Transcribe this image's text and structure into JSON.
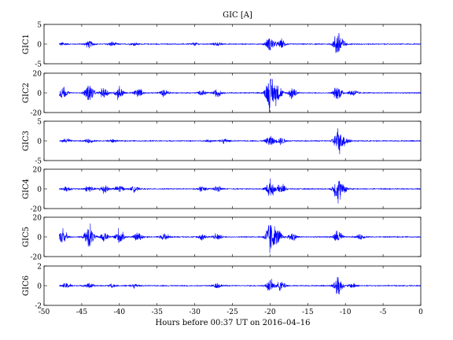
{
  "chart_data": {
    "type": "line",
    "title": "GIC [A]",
    "xlabel": "Hours before  00:37 UT on 2016–04–16",
    "xlim": [
      -50,
      0
    ],
    "xticks": [
      "-50",
      "-45",
      "-40",
      "-35",
      "-30",
      "-25",
      "-20",
      "-15",
      "-10",
      "-5",
      "0"
    ],
    "grid": false,
    "series_color": "#0000ff",
    "panels": [
      {
        "name": "GIC1",
        "ylim": [
          -5,
          5
        ],
        "yticks": [
          "-5",
          "0",
          "5"
        ],
        "events": [
          {
            "x": -47.5,
            "a": 0.5
          },
          {
            "x": -44,
            "a": 1.0
          },
          {
            "x": -41,
            "a": 0.6
          },
          {
            "x": -38,
            "a": 0.4
          },
          {
            "x": -30,
            "a": 0.4
          },
          {
            "x": -27,
            "a": 0.5
          },
          {
            "x": -20,
            "a": 2.0
          },
          {
            "x": -18.5,
            "a": 1.2
          },
          {
            "x": -11,
            "a": 3.5
          },
          {
            "x": -10.5,
            "a": 0.8
          }
        ]
      },
      {
        "name": "GIC2",
        "ylim": [
          -20,
          20
        ],
        "yticks": [
          "-20",
          "0",
          "20"
        ],
        "events": [
          {
            "x": -47.5,
            "a": 7
          },
          {
            "x": -44,
            "a": 11
          },
          {
            "x": -42,
            "a": 6
          },
          {
            "x": -40,
            "a": 7
          },
          {
            "x": -37.5,
            "a": 5
          },
          {
            "x": -34,
            "a": 4
          },
          {
            "x": -29,
            "a": 3
          },
          {
            "x": -27,
            "a": 4
          },
          {
            "x": -20,
            "a": 19
          },
          {
            "x": -19,
            "a": 10
          },
          {
            "x": -17,
            "a": 6
          },
          {
            "x": -11,
            "a": 8
          },
          {
            "x": -9,
            "a": 4
          }
        ]
      },
      {
        "name": "GIC3",
        "ylim": [
          -5,
          5
        ],
        "yticks": [
          "-5",
          "0",
          "5"
        ],
        "events": [
          {
            "x": -47,
            "a": 0.6
          },
          {
            "x": -44,
            "a": 0.6
          },
          {
            "x": -41,
            "a": 0.4
          },
          {
            "x": -28,
            "a": 0.3
          },
          {
            "x": -26,
            "a": 0.6
          },
          {
            "x": -20,
            "a": 1.6
          },
          {
            "x": -18.5,
            "a": 1.0
          },
          {
            "x": -11,
            "a": 3.2
          },
          {
            "x": -10,
            "a": 1.2
          }
        ]
      },
      {
        "name": "GIC4",
        "ylim": [
          -20,
          20
        ],
        "yticks": [
          "-20",
          "0",
          "20"
        ],
        "events": [
          {
            "x": -47,
            "a": 3
          },
          {
            "x": -44,
            "a": 4
          },
          {
            "x": -42,
            "a": 5
          },
          {
            "x": -40,
            "a": 4
          },
          {
            "x": -38,
            "a": 3
          },
          {
            "x": -29,
            "a": 3
          },
          {
            "x": -27,
            "a": 3
          },
          {
            "x": -20,
            "a": 9
          },
          {
            "x": -18.5,
            "a": 5
          },
          {
            "x": -11,
            "a": 14
          },
          {
            "x": -10,
            "a": 3
          }
        ]
      },
      {
        "name": "GIC5",
        "ylim": [
          -20,
          20
        ],
        "yticks": [
          "-20",
          "0",
          "20"
        ],
        "events": [
          {
            "x": -47.5,
            "a": 8
          },
          {
            "x": -44,
            "a": 13
          },
          {
            "x": -42,
            "a": 5
          },
          {
            "x": -40,
            "a": 8
          },
          {
            "x": -37.5,
            "a": 5
          },
          {
            "x": -34,
            "a": 4
          },
          {
            "x": -29,
            "a": 3
          },
          {
            "x": -27,
            "a": 4
          },
          {
            "x": -20,
            "a": 17
          },
          {
            "x": -19,
            "a": 9
          },
          {
            "x": -17,
            "a": 5
          },
          {
            "x": -11,
            "a": 7
          },
          {
            "x": -8,
            "a": 3
          }
        ]
      },
      {
        "name": "GIC6",
        "ylim": [
          -2,
          2
        ],
        "yticks": [
          "-2",
          "0",
          "2"
        ],
        "events": [
          {
            "x": -47,
            "a": 0.3
          },
          {
            "x": -44,
            "a": 0.3
          },
          {
            "x": -41,
            "a": 0.2
          },
          {
            "x": -38,
            "a": 0.2
          },
          {
            "x": -27,
            "a": 0.3
          },
          {
            "x": -20,
            "a": 0.6
          },
          {
            "x": -18.5,
            "a": 0.5
          },
          {
            "x": -11,
            "a": 1.2
          },
          {
            "x": -9,
            "a": 0.3
          }
        ]
      }
    ]
  }
}
